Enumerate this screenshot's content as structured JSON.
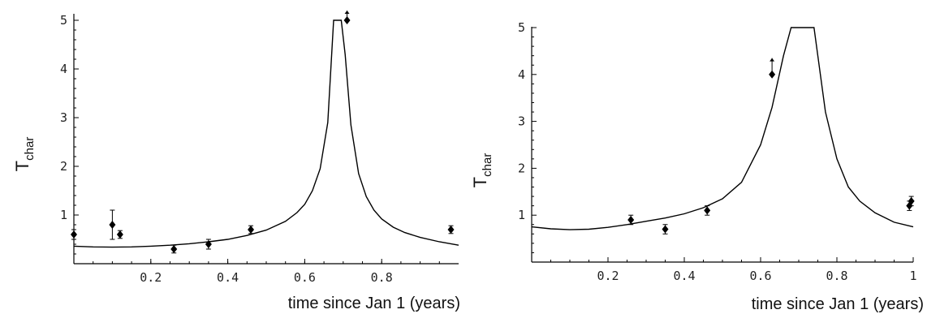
{
  "chart_data": [
    {
      "type": "scatter",
      "title": "",
      "xlabel": "time since Jan 1 (years)",
      "ylabel": "T",
      "ylabel_sub": "char",
      "xlim": [
        0,
        1
      ],
      "ylim": [
        0,
        5
      ],
      "xticks": [
        {
          "value": 0.2,
          "label": "0.2"
        },
        {
          "value": 0.4,
          "label": "0.4"
        },
        {
          "value": 0.6,
          "label": "0.6"
        },
        {
          "value": 0.8,
          "label": "0.8"
        }
      ],
      "yticks": [
        {
          "value": 1,
          "label": "1"
        },
        {
          "value": 2,
          "label": "2"
        },
        {
          "value": 3,
          "label": "3"
        },
        {
          "value": 4,
          "label": "4"
        },
        {
          "value": 5,
          "label": "5"
        }
      ],
      "grid": false,
      "points": [
        {
          "x": 0.0,
          "y": 0.6,
          "err_lo": 0.1,
          "err_hi": 0.1,
          "lower_limit": false
        },
        {
          "x": 0.1,
          "y": 0.8,
          "err_lo": 0.3,
          "err_hi": 0.3,
          "lower_limit": false
        },
        {
          "x": 0.12,
          "y": 0.6,
          "err_lo": 0.08,
          "err_hi": 0.08,
          "lower_limit": false
        },
        {
          "x": 0.26,
          "y": 0.3,
          "err_lo": 0.08,
          "err_hi": 0.08,
          "lower_limit": false
        },
        {
          "x": 0.35,
          "y": 0.4,
          "err_lo": 0.1,
          "err_hi": 0.1,
          "lower_limit": false
        },
        {
          "x": 0.46,
          "y": 0.7,
          "err_lo": 0.08,
          "err_hi": 0.08,
          "lower_limit": false
        },
        {
          "x": 0.71,
          "y": 5.0,
          "err_lo": 0.0,
          "err_hi": 0.2,
          "lower_limit": true
        },
        {
          "x": 0.98,
          "y": 0.7,
          "err_lo": 0.08,
          "err_hi": 0.08,
          "lower_limit": false
        }
      ],
      "fit_curve": {
        "x": [
          0.0,
          0.05,
          0.1,
          0.15,
          0.2,
          0.25,
          0.3,
          0.35,
          0.4,
          0.45,
          0.5,
          0.55,
          0.58,
          0.6,
          0.62,
          0.64,
          0.66,
          0.675,
          0.695,
          0.705,
          0.72,
          0.74,
          0.76,
          0.78,
          0.8,
          0.83,
          0.86,
          0.9,
          0.95,
          1.0
        ],
        "y": [
          0.36,
          0.345,
          0.34,
          0.345,
          0.36,
          0.38,
          0.41,
          0.45,
          0.5,
          0.58,
          0.69,
          0.87,
          1.05,
          1.22,
          1.5,
          1.95,
          2.9,
          5.0,
          5.0,
          4.3,
          2.85,
          1.85,
          1.38,
          1.1,
          0.92,
          0.75,
          0.64,
          0.54,
          0.45,
          0.38
        ]
      }
    },
    {
      "type": "scatter",
      "title": "",
      "xlabel": "time since Jan 1 (years)",
      "ylabel": "T",
      "ylabel_sub": "char",
      "xlim": [
        0,
        1
      ],
      "ylim": [
        0,
        5
      ],
      "xticks": [
        {
          "value": 0.2,
          "label": "0.2"
        },
        {
          "value": 0.4,
          "label": "0.4"
        },
        {
          "value": 0.6,
          "label": "0.6"
        },
        {
          "value": 0.8,
          "label": "0.8"
        },
        {
          "value": 1.0,
          "label": "1"
        }
      ],
      "yticks": [
        {
          "value": 1,
          "label": "1"
        },
        {
          "value": 2,
          "label": "2"
        },
        {
          "value": 3,
          "label": "3"
        },
        {
          "value": 4,
          "label": "4"
        },
        {
          "value": 5,
          "label": "5"
        }
      ],
      "grid": false,
      "points": [
        {
          "x": 0.26,
          "y": 0.9,
          "err_lo": 0.1,
          "err_hi": 0.1,
          "lower_limit": false
        },
        {
          "x": 0.35,
          "y": 0.7,
          "err_lo": 0.1,
          "err_hi": 0.1,
          "lower_limit": false
        },
        {
          "x": 0.46,
          "y": 1.1,
          "err_lo": 0.1,
          "err_hi": 0.1,
          "lower_limit": false
        },
        {
          "x": 0.63,
          "y": 4.0,
          "err_lo": 0.0,
          "err_hi": 0.35,
          "lower_limit": true
        },
        {
          "x": 0.99,
          "y": 1.2,
          "err_lo": 0.1,
          "err_hi": 0.1,
          "lower_limit": false
        },
        {
          "x": 0.995,
          "y": 1.3,
          "err_lo": 0.1,
          "err_hi": 0.1,
          "lower_limit": false
        }
      ],
      "fit_curve": {
        "x": [
          0.0,
          0.05,
          0.1,
          0.15,
          0.2,
          0.25,
          0.3,
          0.35,
          0.4,
          0.45,
          0.5,
          0.55,
          0.6,
          0.63,
          0.66,
          0.68,
          0.69,
          0.74,
          0.75,
          0.77,
          0.8,
          0.83,
          0.86,
          0.9,
          0.95,
          1.0
        ],
        "y": [
          0.75,
          0.71,
          0.69,
          0.7,
          0.74,
          0.8,
          0.87,
          0.94,
          1.03,
          1.16,
          1.35,
          1.7,
          2.5,
          3.3,
          4.4,
          5.0,
          5.0,
          5.0,
          4.4,
          3.2,
          2.2,
          1.6,
          1.3,
          1.05,
          0.85,
          0.75
        ]
      }
    }
  ]
}
